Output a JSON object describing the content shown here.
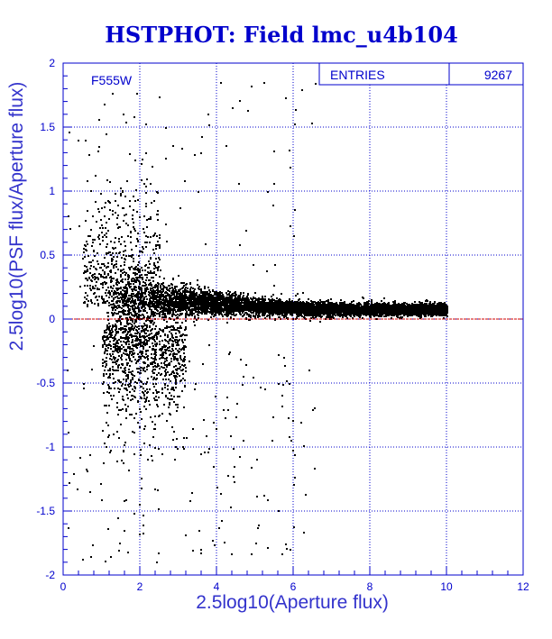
{
  "chart_data": {
    "type": "scatter",
    "title": "HSTPHOT: Field lmc_u4b104",
    "xlabel": "2.5log10(Aperture flux)",
    "ylabel": "2.5log10(PSF flux/Aperture flux)",
    "xlim": [
      0,
      12
    ],
    "ylim": [
      -2,
      2
    ],
    "x_ticks": [
      "0",
      "2",
      "4",
      "6",
      "8",
      "10",
      "12"
    ],
    "y_ticks": [
      "-2",
      "-1.5",
      "-1",
      "-0.5",
      "0",
      "0.5",
      "1",
      "1.5",
      "2"
    ],
    "grid": "dotted",
    "reference_line": {
      "y": 0,
      "color": "#cc0000"
    },
    "annotation": "F555W",
    "stats_box": {
      "label": "ENTRIES",
      "value": "9267"
    },
    "point_color": "#000000",
    "axis_color": "#0000cc"
  }
}
